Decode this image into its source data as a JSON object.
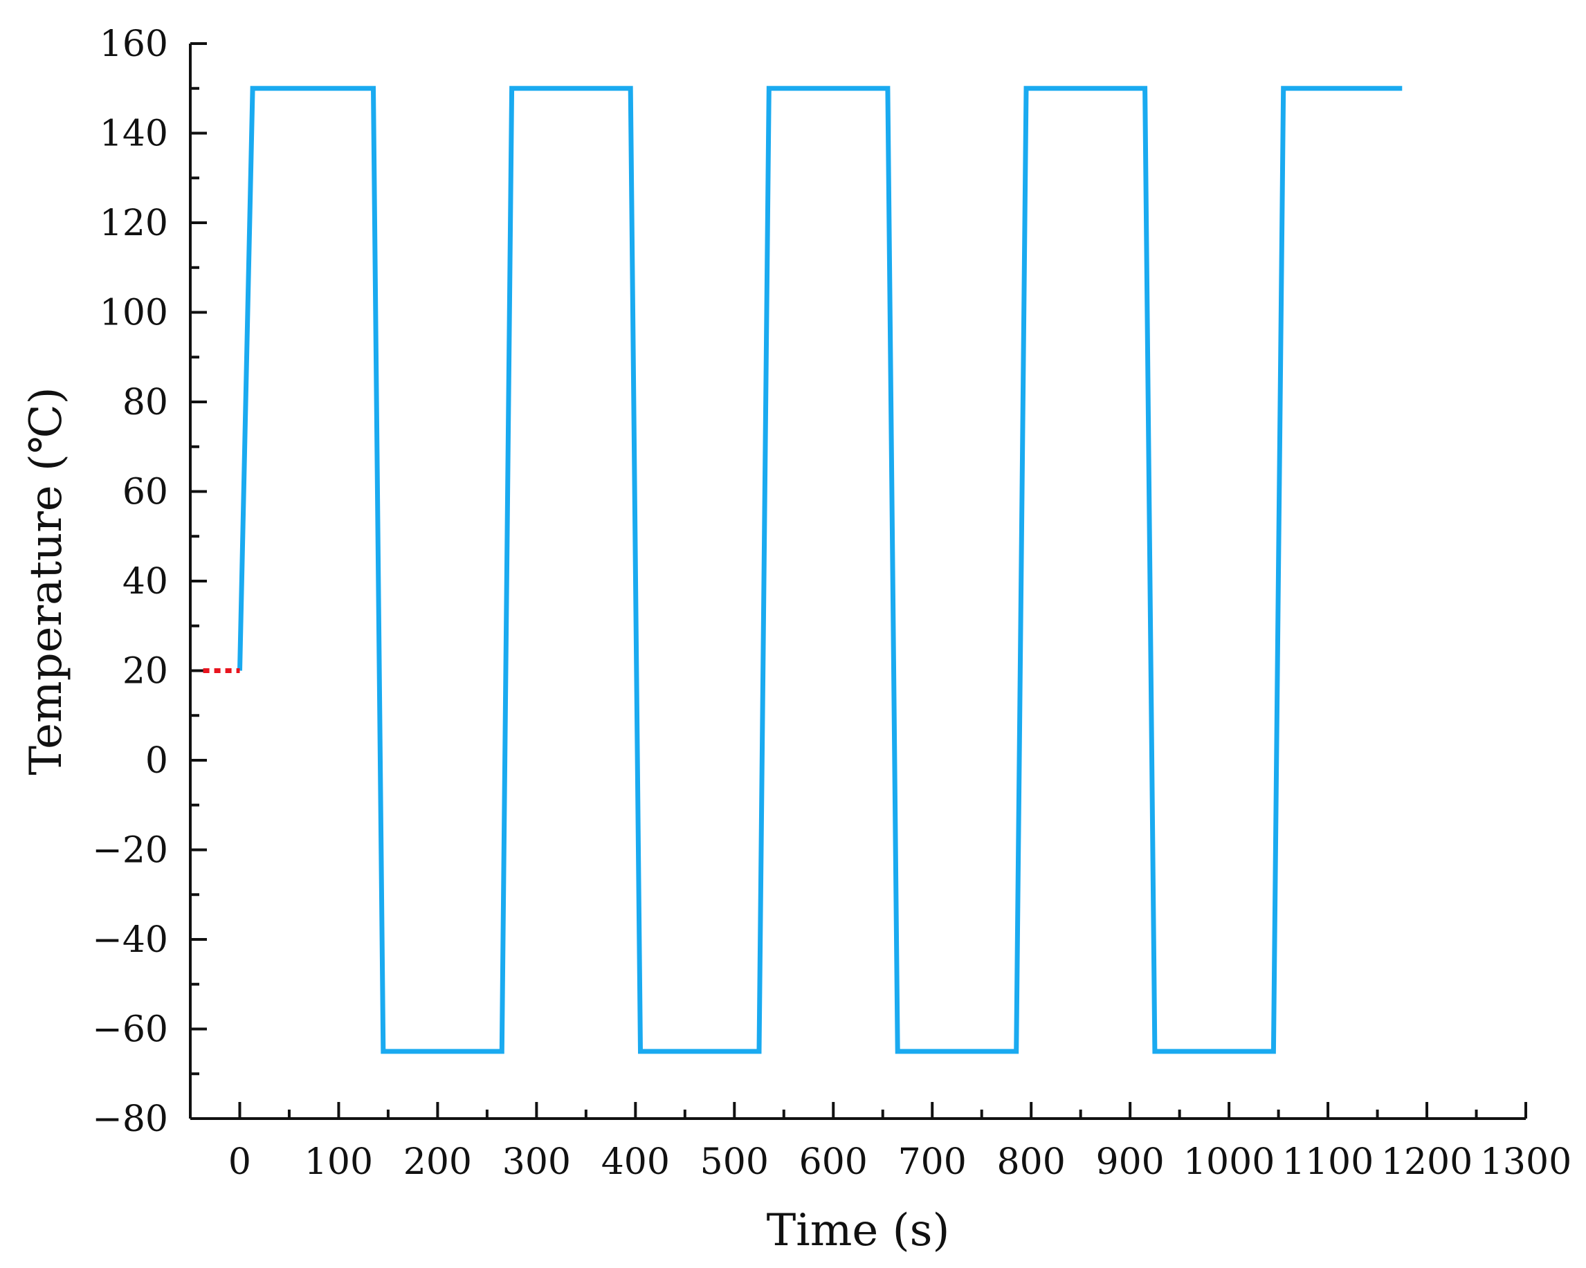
{
  "chart_data": {
    "type": "line",
    "title": "",
    "xlabel": "Time (s)",
    "ylabel": "Temperature (℃)",
    "xlim": [
      -50,
      1300
    ],
    "ylim": [
      -80,
      160
    ],
    "x_ticks": [
      0,
      100,
      200,
      300,
      400,
      500,
      600,
      700,
      800,
      900,
      1000,
      1100,
      1200,
      1300
    ],
    "y_ticks": [
      -80,
      -60,
      -40,
      -20,
      0,
      20,
      40,
      60,
      80,
      100,
      120,
      140,
      160
    ],
    "x_minor_step": 50,
    "y_minor_step": 10,
    "grid": false,
    "legend": "none",
    "colors": {
      "series": "#1aaaf0",
      "initial": "#e8141e",
      "axis": "#111111"
    },
    "series": [
      {
        "style": "solid",
        "x": [
          0,
          13,
          135,
          145,
          265,
          275,
          395,
          405,
          525,
          535,
          655,
          665,
          785,
          795,
          915,
          925,
          1045,
          1055,
          1175
        ],
        "y": [
          20,
          150,
          150,
          -65,
          -65,
          150,
          150,
          -65,
          -65,
          150,
          150,
          -65,
          -65,
          150,
          150,
          -65,
          -65,
          150,
          150
        ]
      },
      {
        "style": "dotted",
        "x": [
          -37,
          0
        ],
        "y": [
          20,
          20
        ]
      }
    ]
  }
}
